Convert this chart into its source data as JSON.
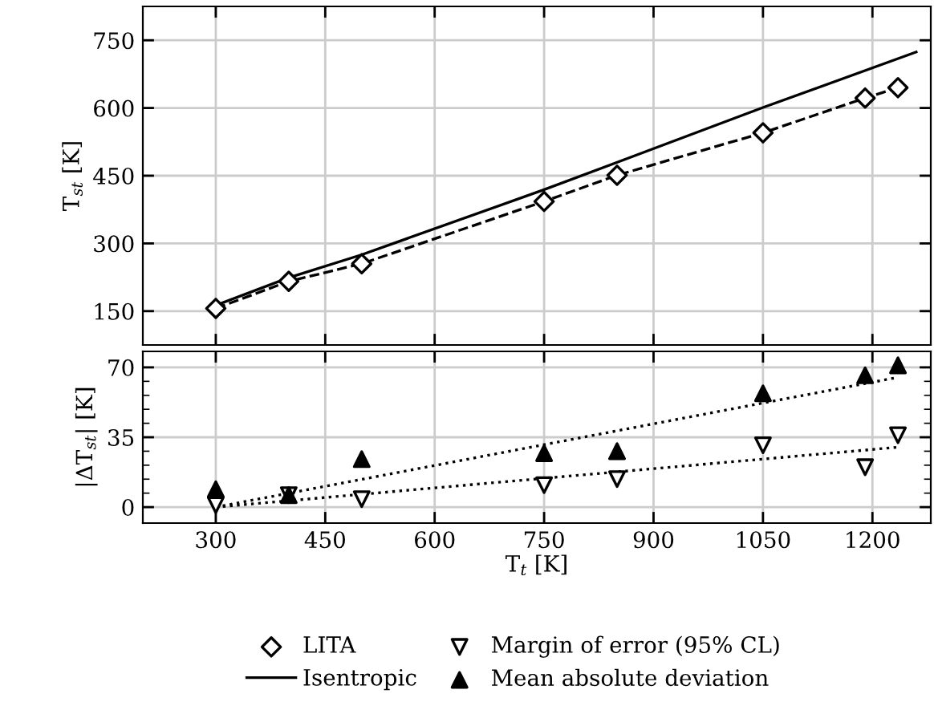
{
  "chart_data": [
    {
      "type": "line",
      "ylabel": "T$_{st}$ [K]",
      "xlim": [
        200,
        1280
      ],
      "xticks": [
        300,
        450,
        600,
        750,
        900,
        1050,
        1200
      ],
      "ylim": [
        75,
        825
      ],
      "yticks": [
        150,
        300,
        450,
        600,
        750
      ],
      "tick_labels": "y",
      "grid": true,
      "legend": "bottom",
      "series": [
        {
          "name": "LITA",
          "type": "scatter",
          "marker": "diamond",
          "color": "#000000",
          "x": [
            300,
            400,
            500,
            750,
            850,
            1050,
            1190,
            1235
          ],
          "values": [
            156,
            216,
            255,
            393,
            451,
            545,
            622,
            645
          ]
        },
        {
          "line_style": "dashed",
          "color": "#000000",
          "x": [
            300,
            400,
            500,
            750,
            850,
            1050,
            1190,
            1235
          ],
          "values": [
            156,
            216,
            255,
            393,
            451,
            545,
            622,
            645
          ]
        },
        {
          "name": "Isentropic",
          "line_style": "solid",
          "color": "#000000",
          "x": [
            300,
            400,
            500,
            750,
            900,
            1050,
            1260
          ],
          "values": [
            163,
            224,
            275,
            419,
            510,
            601,
            724
          ]
        }
      ]
    },
    {
      "type": "scatter",
      "xlabel": "T$_{t}$ [K]",
      "ylabel": "|ΔT$_{st}$| [K]",
      "xlim": [
        200,
        1280
      ],
      "xticks": [
        300,
        450,
        600,
        750,
        900,
        1050,
        1200
      ],
      "ylim": [
        -8,
        78
      ],
      "yticks": [
        0,
        {
          "value": 7,
          "label": null
        },
        {
          "value": 14,
          "label": null
        },
        {
          "value": 21,
          "label": null
        },
        {
          "value": 28,
          "label": null
        },
        35,
        {
          "value": 42,
          "label": null
        },
        {
          "value": 49,
          "label": null
        },
        {
          "value": 56,
          "label": null
        },
        {
          "value": 63,
          "label": null
        },
        70
      ],
      "grid": true,
      "legend": "bottom",
      "series": [
        {
          "name": "Margin of error (95% CL)",
          "marker": "triangle_down",
          "color": "#000000",
          "x": [
            300,
            400,
            500,
            750,
            850,
            1050,
            1190,
            1235
          ],
          "values": [
            1,
            6,
            4,
            11,
            14,
            31,
            20,
            36
          ]
        },
        {
          "name": "Mean absolute deviation",
          "marker": "triangle",
          "color": "#000000",
          "x": [
            300,
            400,
            500,
            750,
            850,
            1050,
            1190,
            1235
          ],
          "values": [
            9,
            6,
            24,
            27,
            28,
            57,
            66,
            71
          ]
        },
        {
          "type": "line",
          "line_style": "dotted",
          "color": "#000000",
          "x": [
            300,
            1235
          ],
          "values": [
            0,
            65
          ]
        },
        {
          "type": "line",
          "line_style": "dotted",
          "color": "#000000",
          "x": [
            300,
            1235
          ],
          "values": [
            0,
            30
          ]
        }
      ]
    }
  ]
}
